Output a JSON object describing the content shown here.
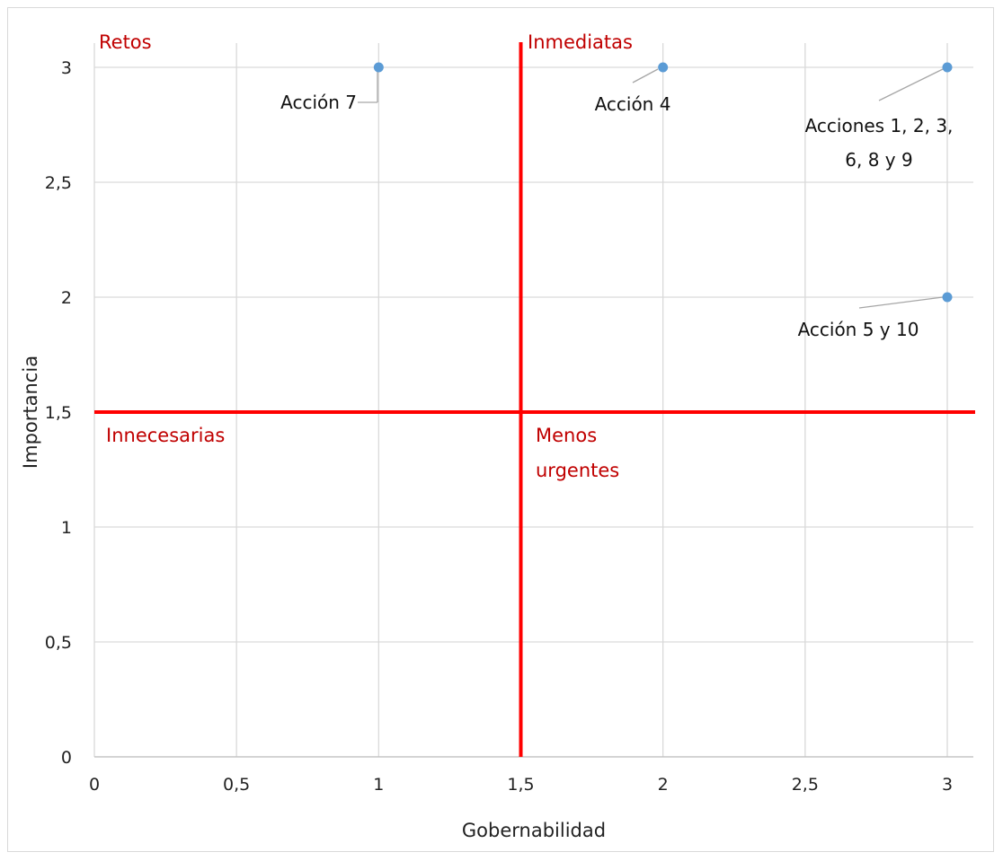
{
  "chart_data": {
    "type": "scatter",
    "title": "",
    "xlabel": "Gobernabilidad",
    "ylabel": "Importancia",
    "xlim": [
      0,
      3
    ],
    "ylim": [
      0,
      3
    ],
    "x_ticks": [
      "0",
      "0,5",
      "1",
      "1,5",
      "2",
      "2,5",
      "3"
    ],
    "y_ticks": [
      "0",
      "0,5",
      "1",
      "1,5",
      "2",
      "2,5",
      "3"
    ],
    "grid": true,
    "points": [
      {
        "x": 1,
        "y": 3,
        "label": "Acción 7"
      },
      {
        "x": 2,
        "y": 3,
        "label": "Acción 4"
      },
      {
        "x": 3,
        "y": 3,
        "label": "Acciones 1, 2, 3,",
        "label_line2": "6, 8 y 9"
      },
      {
        "x": 3,
        "y": 2,
        "label": "Acción 5 y 10"
      }
    ],
    "reference_lines": {
      "x": 1.5,
      "y": 1.5
    },
    "quadrants": {
      "top_left": "Retos",
      "top_right": "Inmediatas",
      "bottom_left": "Innecesarias",
      "bottom_right_line1": "Menos",
      "bottom_right_line2": "urgentes"
    },
    "colors": {
      "points": "#5b9bd5",
      "reference_lines": "#ff0000",
      "quadrant_labels": "#c00000",
      "grid": "#d9d9d9",
      "leader_lines": "#a6a6a6"
    }
  }
}
